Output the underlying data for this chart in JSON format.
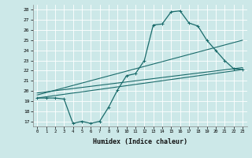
{
  "title": "",
  "xlabel": "Humidex (Indice chaleur)",
  "background_color": "#cce8e8",
  "grid_color": "#ffffff",
  "line_color": "#1a6b6b",
  "xlim": [
    -0.5,
    23.5
  ],
  "ylim": [
    16.5,
    28.5
  ],
  "yticks": [
    17,
    18,
    19,
    20,
    21,
    22,
    23,
    24,
    25,
    26,
    27,
    28
  ],
  "xticks": [
    0,
    1,
    2,
    3,
    4,
    5,
    6,
    7,
    8,
    9,
    10,
    11,
    12,
    13,
    14,
    15,
    16,
    17,
    18,
    19,
    20,
    21,
    22,
    23
  ],
  "series1_x": [
    0,
    1,
    2,
    3,
    4,
    5,
    6,
    7,
    8,
    9,
    10,
    11,
    12,
    13,
    14,
    15,
    16,
    17,
    18,
    19,
    20,
    21,
    22,
    23
  ],
  "series1_y": [
    19.3,
    19.3,
    19.3,
    19.2,
    16.8,
    17.0,
    16.8,
    17.0,
    18.4,
    20.1,
    21.5,
    21.7,
    23.0,
    26.5,
    26.6,
    27.8,
    27.9,
    26.7,
    26.4,
    25.0,
    24.0,
    23.0,
    22.2,
    22.1
  ],
  "series2_x": [
    0,
    23
  ],
  "series2_y": [
    19.3,
    22.1
  ],
  "series3_x": [
    0,
    23
  ],
  "series3_y": [
    19.6,
    25.0
  ],
  "series4_x": [
    0,
    23
  ],
  "series4_y": [
    19.8,
    22.3
  ]
}
